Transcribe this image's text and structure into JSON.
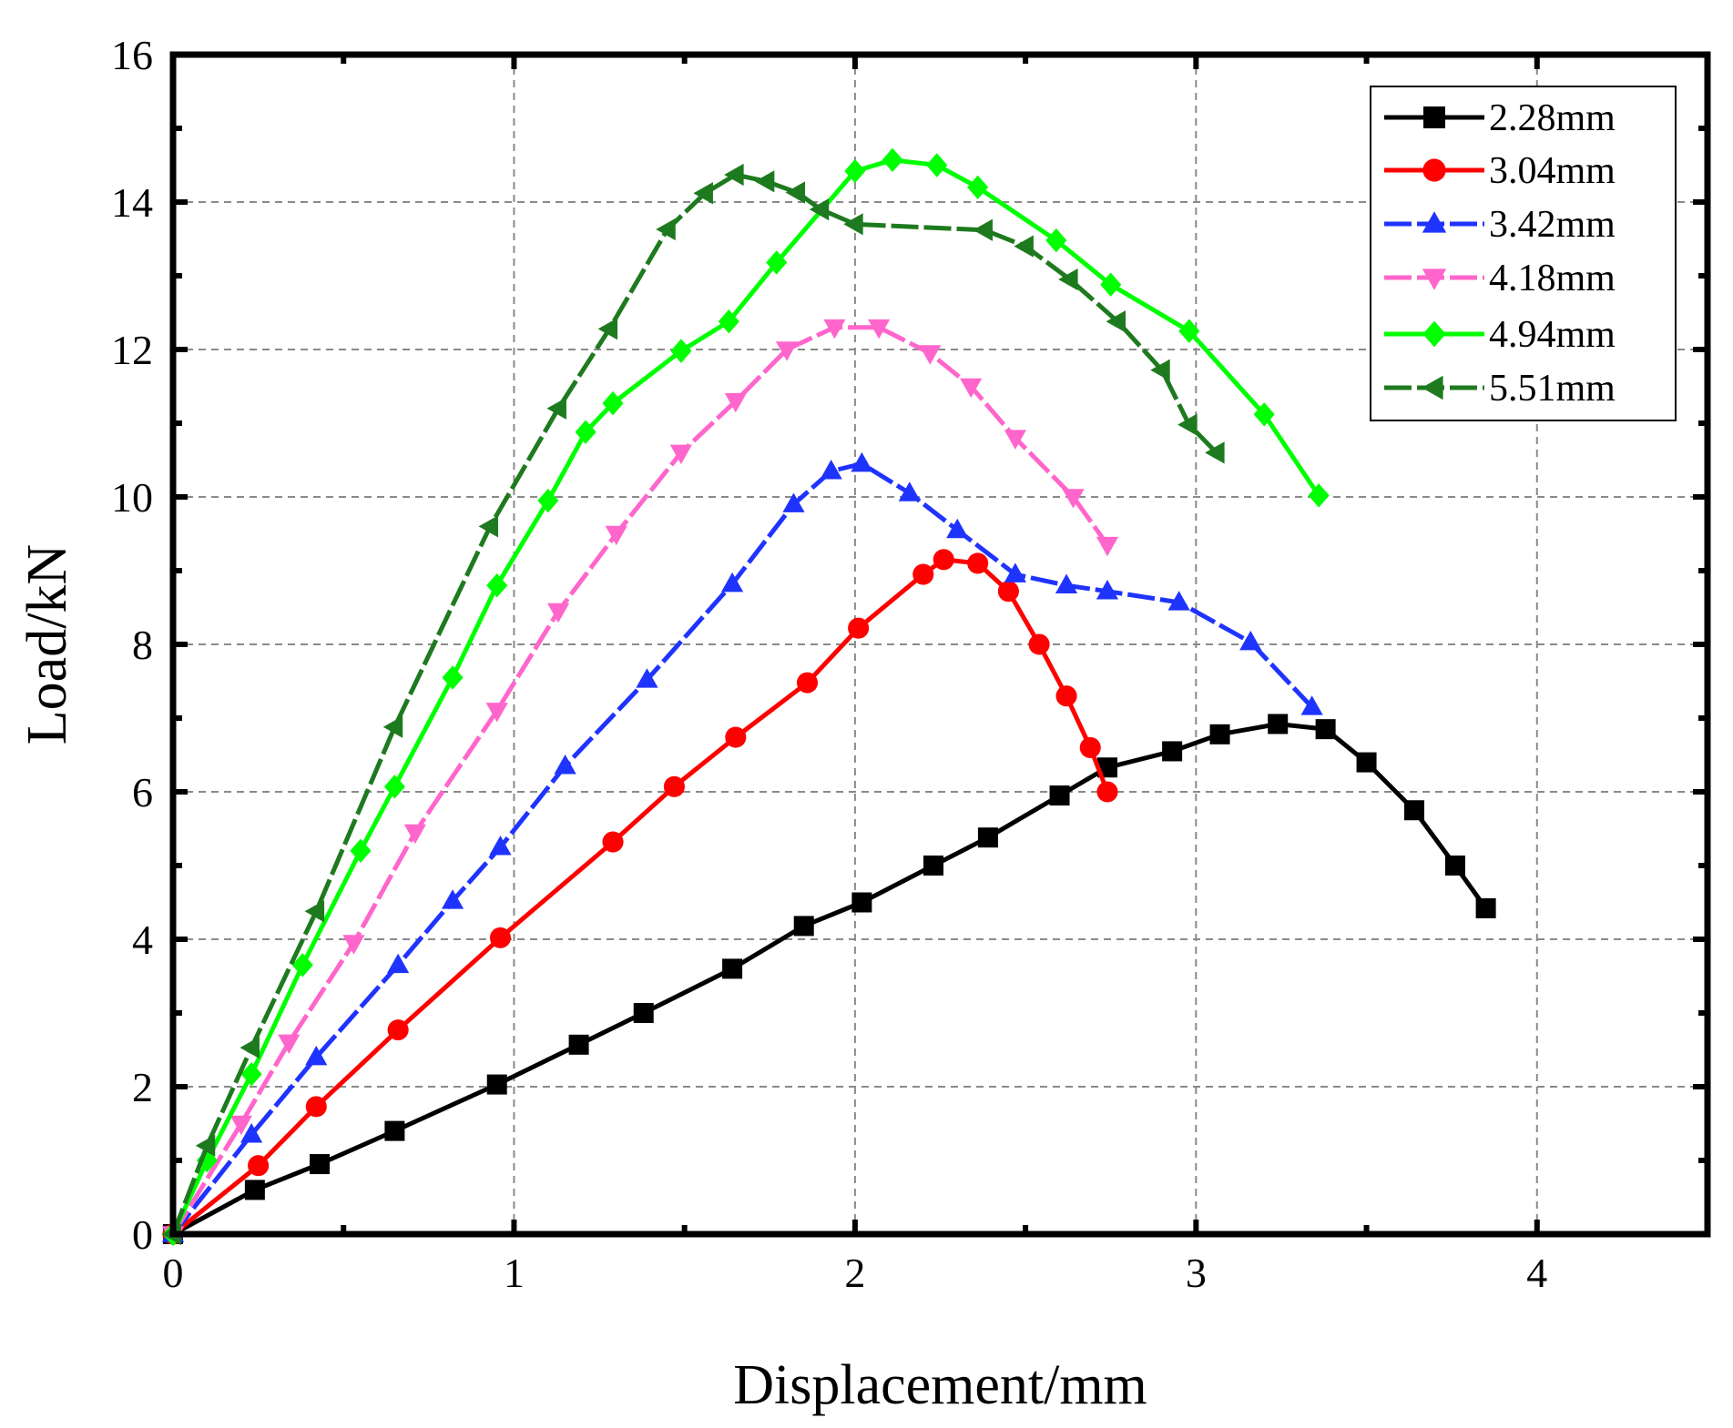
{
  "chart_data": {
    "type": "line",
    "title": "",
    "xlabel": "Displacement/mm",
    "ylabel": "Load/kN",
    "xlim": [
      0,
      4.5
    ],
    "ylim": [
      0,
      16
    ],
    "xticks": [
      "0",
      "1",
      "2",
      "3",
      "4"
    ],
    "yticks": [
      "0",
      "2",
      "4",
      "6",
      "8",
      "10",
      "12",
      "14",
      "16"
    ],
    "grid": true,
    "legend_position": "top-right",
    "series": [
      {
        "name": "2.28mm",
        "color": "#000000",
        "marker": "square",
        "dash": "solid",
        "points": [
          [
            0,
            0
          ],
          [
            0.24,
            0.6
          ],
          [
            0.43,
            0.95
          ],
          [
            0.65,
            1.4
          ],
          [
            0.95,
            2.03
          ],
          [
            1.19,
            2.57
          ],
          [
            1.38,
            3.0
          ],
          [
            1.64,
            3.6
          ],
          [
            1.85,
            4.18
          ],
          [
            2.02,
            4.5
          ],
          [
            2.23,
            5.0
          ],
          [
            2.39,
            5.38
          ],
          [
            2.6,
            5.95
          ],
          [
            2.74,
            6.33
          ],
          [
            2.93,
            6.55
          ],
          [
            3.07,
            6.78
          ],
          [
            3.24,
            6.92
          ],
          [
            3.38,
            6.85
          ],
          [
            3.5,
            6.4
          ],
          [
            3.64,
            5.75
          ],
          [
            3.76,
            5.0
          ],
          [
            3.85,
            4.42
          ]
        ]
      },
      {
        "name": "3.04mm",
        "color": "#ff0000",
        "marker": "circle",
        "dash": "solid",
        "points": [
          [
            0,
            0
          ],
          [
            0.25,
            0.93
          ],
          [
            0.42,
            1.73
          ],
          [
            0.66,
            2.77
          ],
          [
            0.96,
            4.02
          ],
          [
            1.29,
            5.32
          ],
          [
            1.47,
            6.07
          ],
          [
            1.65,
            6.74
          ],
          [
            1.86,
            7.48
          ],
          [
            2.01,
            8.22
          ],
          [
            2.2,
            8.95
          ],
          [
            2.26,
            9.15
          ],
          [
            2.36,
            9.1
          ],
          [
            2.45,
            8.72
          ],
          [
            2.54,
            8.0
          ],
          [
            2.62,
            7.3
          ],
          [
            2.69,
            6.6
          ],
          [
            2.74,
            6.0
          ]
        ]
      },
      {
        "name": "3.42mm",
        "color": "#1f33ff",
        "marker": "triangle-up",
        "dash": "dashed",
        "points": [
          [
            0,
            0
          ],
          [
            0.23,
            1.35
          ],
          [
            0.42,
            2.4
          ],
          [
            0.66,
            3.65
          ],
          [
            0.82,
            4.52
          ],
          [
            0.96,
            5.25
          ],
          [
            1.15,
            6.35
          ],
          [
            1.39,
            7.52
          ],
          [
            1.64,
            8.82
          ],
          [
            1.82,
            9.9
          ],
          [
            1.93,
            10.35
          ],
          [
            2.02,
            10.45
          ],
          [
            2.16,
            10.05
          ],
          [
            2.3,
            9.55
          ],
          [
            2.47,
            8.95
          ],
          [
            2.62,
            8.8
          ],
          [
            2.74,
            8.72
          ],
          [
            2.95,
            8.57
          ],
          [
            3.16,
            8.03
          ],
          [
            3.34,
            7.15
          ]
        ]
      },
      {
        "name": "4.18mm",
        "color": "#ff66cc",
        "marker": "triangle-down",
        "dash": "dashed",
        "points": [
          [
            0,
            0
          ],
          [
            0.2,
            1.5
          ],
          [
            0.34,
            2.6
          ],
          [
            0.53,
            3.95
          ],
          [
            0.71,
            5.45
          ],
          [
            0.95,
            7.1
          ],
          [
            1.13,
            8.45
          ],
          [
            1.3,
            9.5
          ],
          [
            1.49,
            10.6
          ],
          [
            1.65,
            11.3
          ],
          [
            1.8,
            12.0
          ],
          [
            1.94,
            12.3
          ],
          [
            2.07,
            12.3
          ],
          [
            2.22,
            11.95
          ],
          [
            2.34,
            11.5
          ],
          [
            2.47,
            10.8
          ],
          [
            2.64,
            10.0
          ],
          [
            2.74,
            9.35
          ]
        ]
      },
      {
        "name": "4.94mm",
        "color": "#00ff00",
        "marker": "diamond",
        "dash": "solid",
        "points": [
          [
            0,
            0
          ],
          [
            0.1,
            1.0
          ],
          [
            0.23,
            2.17
          ],
          [
            0.38,
            3.65
          ],
          [
            0.55,
            5.2
          ],
          [
            0.65,
            6.07
          ],
          [
            0.82,
            7.55
          ],
          [
            0.95,
            8.8
          ],
          [
            1.1,
            9.95
          ],
          [
            1.21,
            10.88
          ],
          [
            1.29,
            11.27
          ],
          [
            1.49,
            11.98
          ],
          [
            1.63,
            12.38
          ],
          [
            1.77,
            13.18
          ],
          [
            2.0,
            14.42
          ],
          [
            2.11,
            14.57
          ],
          [
            2.24,
            14.5
          ],
          [
            2.36,
            14.2
          ],
          [
            2.59,
            13.48
          ],
          [
            2.75,
            12.88
          ],
          [
            2.98,
            12.25
          ],
          [
            3.2,
            11.12
          ],
          [
            3.36,
            10.02
          ]
        ]
      },
      {
        "name": "5.51mm",
        "color": "#1e7a1e",
        "marker": "triangle-left",
        "dash": "dashed",
        "points": [
          [
            0,
            0
          ],
          [
            0.1,
            1.2
          ],
          [
            0.23,
            2.53
          ],
          [
            0.42,
            4.38
          ],
          [
            0.65,
            6.88
          ],
          [
            0.93,
            9.6
          ],
          [
            1.13,
            11.2
          ],
          [
            1.28,
            12.28
          ],
          [
            1.45,
            13.63
          ],
          [
            1.56,
            14.12
          ],
          [
            1.65,
            14.37
          ],
          [
            1.74,
            14.28
          ],
          [
            1.83,
            14.13
          ],
          [
            1.9,
            13.9
          ],
          [
            2.0,
            13.7
          ],
          [
            2.38,
            13.62
          ],
          [
            2.5,
            13.4
          ],
          [
            2.63,
            12.95
          ],
          [
            2.77,
            12.38
          ],
          [
            2.9,
            11.72
          ],
          [
            2.98,
            10.98
          ],
          [
            3.06,
            10.6
          ]
        ]
      }
    ]
  }
}
